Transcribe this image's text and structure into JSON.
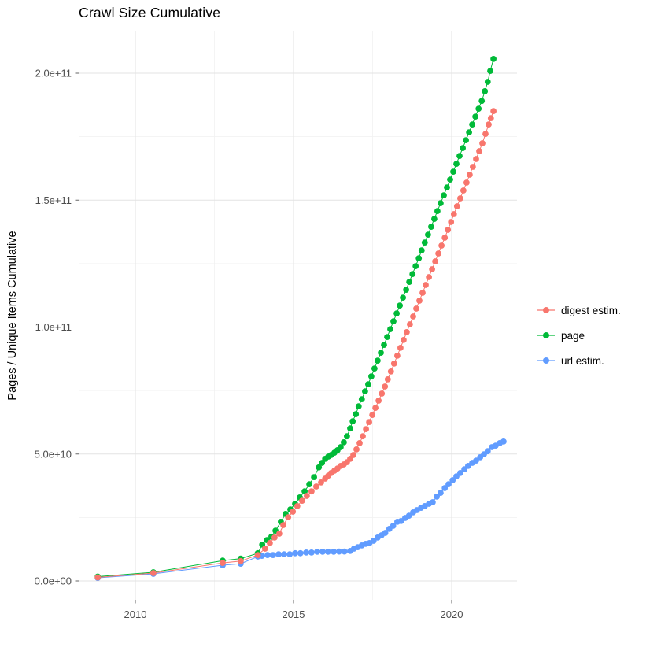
{
  "title": "Crawl Size Cumulative",
  "y_axis_title": "Pages / Unique Items Cumulative",
  "legend": [
    {
      "label": "digest estim."
    },
    {
      "label": "page"
    },
    {
      "label": "url estim."
    }
  ],
  "colors": {
    "digest": "#F8766D",
    "page": "#00BA38",
    "url": "#619CFF",
    "grid_major": "#E3E3E3",
    "grid_minor": "#F1F1F1",
    "tick": "#666666",
    "tick_label": "#4D4D4D",
    "title": "#000000"
  },
  "chart_data": {
    "type": "line",
    "title": "Crawl Size Cumulative",
    "xlabel": "",
    "ylabel": "Pages / Unique Items Cumulative",
    "value_unit": "1e9 pages (billions)",
    "x_domain": [
      2008.2,
      2022.06
    ],
    "y_domain_e9": [
      -7.4,
      216.4
    ],
    "legend_position": "right",
    "grid": {
      "x_major": [
        2010,
        2015,
        2020
      ],
      "x_minor": [
        2012.5,
        2017.5
      ],
      "y_major": [
        0,
        50,
        100,
        150,
        200
      ],
      "y_minor": [
        25,
        75,
        125,
        175
      ]
    },
    "x_ticks": [
      {
        "value": 2010,
        "label": "2010"
      },
      {
        "value": 2015,
        "label": "2015"
      },
      {
        "value": 2020,
        "label": "2020"
      }
    ],
    "y_ticks": [
      {
        "value": 0,
        "label": "0.0e+00"
      },
      {
        "value": 50,
        "label": "5.0e+10"
      },
      {
        "value": 100,
        "label": "1.0e+11"
      },
      {
        "value": 150,
        "label": "1.5e+11"
      },
      {
        "value": 200,
        "label": "2.0e+11"
      }
    ],
    "series": [
      {
        "name": "digest estim.",
        "color": "#F8766D",
        "points": [
          [
            2008.81,
            1.4
          ],
          [
            2010.57,
            3.1
          ],
          [
            2012.76,
            7.1
          ],
          [
            2013.33,
            7.8
          ],
          [
            2013.87,
            10.2
          ],
          [
            2014.1,
            12.7
          ],
          [
            2014.25,
            14.9
          ],
          [
            2014.4,
            17.1
          ],
          [
            2014.55,
            18.6
          ],
          [
            2014.68,
            22.0
          ],
          [
            2014.83,
            25.1
          ],
          [
            2014.98,
            27.3
          ],
          [
            2015.12,
            29.5
          ],
          [
            2015.27,
            31.6
          ],
          [
            2015.42,
            33.5
          ],
          [
            2015.57,
            35.3
          ],
          [
            2015.72,
            37.2
          ],
          [
            2015.87,
            38.8
          ],
          [
            2016.0,
            40.3
          ],
          [
            2016.1,
            41.5
          ],
          [
            2016.19,
            42.5
          ],
          [
            2016.29,
            43.4
          ],
          [
            2016.39,
            44.3
          ],
          [
            2016.49,
            45.3
          ],
          [
            2016.59,
            45.9
          ],
          [
            2016.69,
            46.8
          ],
          [
            2016.79,
            48.1
          ],
          [
            2016.89,
            49.6
          ],
          [
            2016.99,
            51.8
          ],
          [
            2017.09,
            54.3
          ],
          [
            2017.19,
            57.0
          ],
          [
            2017.29,
            59.8
          ],
          [
            2017.39,
            62.6
          ],
          [
            2017.49,
            65.4
          ],
          [
            2017.59,
            68.2
          ],
          [
            2017.69,
            71.0
          ],
          [
            2017.79,
            73.8
          ],
          [
            2017.89,
            76.6
          ],
          [
            2017.98,
            79.4
          ],
          [
            2018.08,
            82.5
          ],
          [
            2018.18,
            85.6
          ],
          [
            2018.28,
            88.7
          ],
          [
            2018.38,
            91.8
          ],
          [
            2018.48,
            94.9
          ],
          [
            2018.58,
            98.0
          ],
          [
            2018.68,
            101.1
          ],
          [
            2018.78,
            104.2
          ],
          [
            2018.88,
            107.3
          ],
          [
            2018.98,
            110.4
          ],
          [
            2019.08,
            113.5
          ],
          [
            2019.18,
            116.6
          ],
          [
            2019.28,
            119.7
          ],
          [
            2019.38,
            122.8
          ],
          [
            2019.48,
            125.9
          ],
          [
            2019.58,
            129.0
          ],
          [
            2019.68,
            132.1
          ],
          [
            2019.78,
            135.2
          ],
          [
            2019.88,
            138.3
          ],
          [
            2019.98,
            141.4
          ],
          [
            2020.07,
            144.5
          ],
          [
            2020.17,
            147.6
          ],
          [
            2020.27,
            150.7
          ],
          [
            2020.37,
            153.8
          ],
          [
            2020.47,
            156.9
          ],
          [
            2020.57,
            160.0
          ],
          [
            2020.67,
            163.1
          ],
          [
            2020.77,
            166.2
          ],
          [
            2020.87,
            169.3
          ],
          [
            2020.97,
            172.4
          ],
          [
            2021.07,
            176.1
          ],
          [
            2021.17,
            179.8
          ],
          [
            2021.24,
            182.3
          ],
          [
            2021.32,
            185.1
          ]
        ]
      },
      {
        "name": "page",
        "color": "#00BA38",
        "points": [
          [
            2008.81,
            1.7
          ],
          [
            2010.57,
            3.4
          ],
          [
            2012.76,
            8.0
          ],
          [
            2013.33,
            8.8
          ],
          [
            2013.87,
            10.9
          ],
          [
            2014.01,
            14.3
          ],
          [
            2014.16,
            16.1
          ],
          [
            2014.3,
            17.4
          ],
          [
            2014.43,
            19.8
          ],
          [
            2014.6,
            23.3
          ],
          [
            2014.75,
            26.4
          ],
          [
            2014.9,
            28.2
          ],
          [
            2015.05,
            30.4
          ],
          [
            2015.2,
            32.9
          ],
          [
            2015.35,
            35.3
          ],
          [
            2015.5,
            38.1
          ],
          [
            2015.65,
            40.9
          ],
          [
            2015.8,
            44.7
          ],
          [
            2015.9,
            46.5
          ],
          [
            2016.0,
            48.1
          ],
          [
            2016.1,
            49.0
          ],
          [
            2016.19,
            49.6
          ],
          [
            2016.29,
            50.5
          ],
          [
            2016.39,
            51.5
          ],
          [
            2016.49,
            52.7
          ],
          [
            2016.59,
            54.6
          ],
          [
            2016.69,
            57.0
          ],
          [
            2016.79,
            60.1
          ],
          [
            2016.87,
            62.9
          ],
          [
            2016.97,
            65.7
          ],
          [
            2017.06,
            68.8
          ],
          [
            2017.16,
            71.6
          ],
          [
            2017.26,
            74.7
          ],
          [
            2017.36,
            77.5
          ],
          [
            2017.46,
            80.6
          ],
          [
            2017.56,
            83.7
          ],
          [
            2017.66,
            86.8
          ],
          [
            2017.76,
            89.9
          ],
          [
            2017.86,
            93.0
          ],
          [
            2017.96,
            96.1
          ],
          [
            2018.06,
            99.2
          ],
          [
            2018.16,
            102.3
          ],
          [
            2018.26,
            105.4
          ],
          [
            2018.36,
            108.5
          ],
          [
            2018.46,
            111.6
          ],
          [
            2018.56,
            114.7
          ],
          [
            2018.66,
            117.8
          ],
          [
            2018.76,
            120.9
          ],
          [
            2018.86,
            124.0
          ],
          [
            2018.96,
            127.1
          ],
          [
            2019.05,
            130.2
          ],
          [
            2019.15,
            133.3
          ],
          [
            2019.25,
            136.4
          ],
          [
            2019.35,
            139.5
          ],
          [
            2019.45,
            142.6
          ],
          [
            2019.55,
            145.7
          ],
          [
            2019.65,
            148.8
          ],
          [
            2019.75,
            151.9
          ],
          [
            2019.85,
            155.0
          ],
          [
            2019.95,
            158.1
          ],
          [
            2020.05,
            161.2
          ],
          [
            2020.15,
            164.3
          ],
          [
            2020.25,
            167.4
          ],
          [
            2020.35,
            170.5
          ],
          [
            2020.45,
            173.6
          ],
          [
            2020.55,
            176.7
          ],
          [
            2020.65,
            179.8
          ],
          [
            2020.75,
            182.9
          ],
          [
            2020.85,
            186.0
          ],
          [
            2020.95,
            189.1
          ],
          [
            2021.05,
            192.9
          ],
          [
            2021.14,
            196.6
          ],
          [
            2021.22,
            200.9
          ],
          [
            2021.32,
            205.6
          ]
        ]
      },
      {
        "name": "url estim.",
        "color": "#619CFF",
        "points": [
          [
            2008.81,
            1.2
          ],
          [
            2010.57,
            2.8
          ],
          [
            2012.76,
            6.2
          ],
          [
            2013.33,
            6.8
          ],
          [
            2013.87,
            9.6
          ],
          [
            2014.0,
            9.9
          ],
          [
            2014.18,
            10.2
          ],
          [
            2014.35,
            10.2
          ],
          [
            2014.53,
            10.5
          ],
          [
            2014.7,
            10.5
          ],
          [
            2014.88,
            10.5
          ],
          [
            2015.05,
            10.9
          ],
          [
            2015.22,
            10.9
          ],
          [
            2015.4,
            11.2
          ],
          [
            2015.57,
            11.2
          ],
          [
            2015.75,
            11.5
          ],
          [
            2015.92,
            11.5
          ],
          [
            2016.09,
            11.5
          ],
          [
            2016.27,
            11.5
          ],
          [
            2016.44,
            11.6
          ],
          [
            2016.61,
            11.6
          ],
          [
            2016.79,
            11.8
          ],
          [
            2016.91,
            12.7
          ],
          [
            2017.03,
            13.3
          ],
          [
            2017.16,
            14.0
          ],
          [
            2017.28,
            14.6
          ],
          [
            2017.4,
            14.9
          ],
          [
            2017.53,
            15.8
          ],
          [
            2017.66,
            17.1
          ],
          [
            2017.78,
            18.0
          ],
          [
            2017.9,
            18.9
          ],
          [
            2018.03,
            20.5
          ],
          [
            2018.15,
            21.7
          ],
          [
            2018.28,
            23.3
          ],
          [
            2018.4,
            23.6
          ],
          [
            2018.53,
            24.8
          ],
          [
            2018.65,
            25.7
          ],
          [
            2018.78,
            27.0
          ],
          [
            2018.9,
            27.9
          ],
          [
            2019.03,
            28.8
          ],
          [
            2019.15,
            29.5
          ],
          [
            2019.28,
            30.4
          ],
          [
            2019.4,
            31.0
          ],
          [
            2019.53,
            33.2
          ],
          [
            2019.65,
            34.7
          ],
          [
            2019.78,
            36.6
          ],
          [
            2019.9,
            38.1
          ],
          [
            2020.03,
            39.7
          ],
          [
            2020.15,
            41.2
          ],
          [
            2020.27,
            42.5
          ],
          [
            2020.4,
            44.0
          ],
          [
            2020.52,
            45.3
          ],
          [
            2020.65,
            46.5
          ],
          [
            2020.77,
            47.4
          ],
          [
            2020.9,
            48.7
          ],
          [
            2021.02,
            49.9
          ],
          [
            2021.14,
            51.1
          ],
          [
            2021.27,
            52.7
          ],
          [
            2021.39,
            53.3
          ],
          [
            2021.52,
            54.3
          ],
          [
            2021.64,
            54.9
          ]
        ]
      }
    ]
  }
}
